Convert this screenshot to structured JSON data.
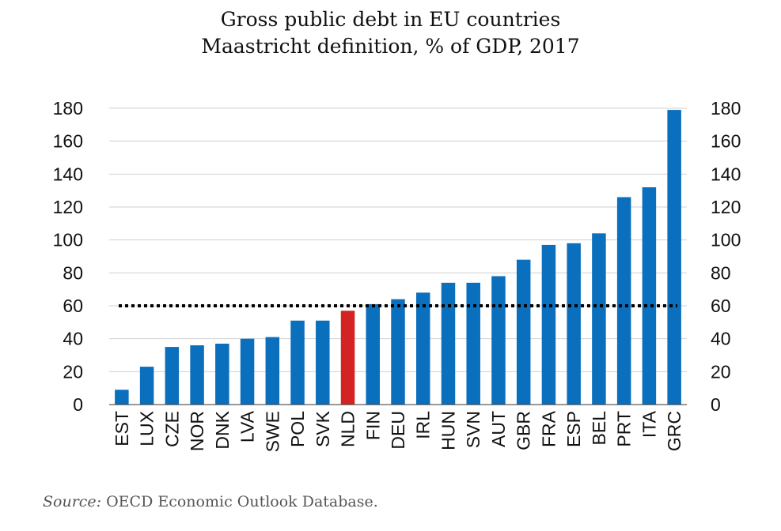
{
  "header": {
    "title_line1": "Gross public debt in EU countries",
    "title_line2": "Maastricht definition, % of GDP, 2017"
  },
  "footer": {
    "source_label": "Source:",
    "source_text": " OECD Economic Outlook Database."
  },
  "chart_data": {
    "type": "bar",
    "title": "Gross public debt in EU countries",
    "subtitle": "Maastricht definition, % of GDP, 2017",
    "xlabel": "",
    "ylabel": "",
    "ylim": [
      0,
      180
    ],
    "yticks": [
      0,
      20,
      40,
      60,
      80,
      100,
      120,
      140,
      160,
      180
    ],
    "grid": true,
    "secondary_axis_right": true,
    "categories": [
      "EST",
      "LUX",
      "CZE",
      "NOR",
      "DNK",
      "LVA",
      "SWE",
      "POL",
      "SVK",
      "NLD",
      "FIN",
      "DEU",
      "IRL",
      "HUN",
      "SVN",
      "AUT",
      "GBR",
      "FRA",
      "ESP",
      "BEL",
      "PRT",
      "ITA",
      "GRC"
    ],
    "values": [
      9,
      23,
      35,
      36,
      37,
      40,
      41,
      51,
      51,
      57,
      61,
      64,
      68,
      74,
      74,
      78,
      88,
      97,
      98,
      104,
      126,
      132,
      179
    ],
    "highlight_category": "NLD",
    "reference_line": {
      "value": 60,
      "style": "dotted"
    },
    "colors": {
      "bar": "#0a6fbd",
      "highlight": "#d42323",
      "reference": "#000000",
      "grid": "#d0d0d0"
    }
  }
}
